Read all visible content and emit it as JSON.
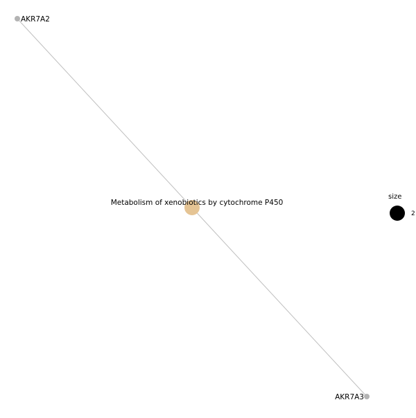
{
  "network": {
    "nodes": [
      {
        "id": "AKR7A2",
        "label": "AKR7A2",
        "type": "gene",
        "color": "#b3b3b3"
      },
      {
        "id": "pathway",
        "label": "Metabolism of xenobiotics by cytochrome P450",
        "type": "category",
        "color": "#e5c494",
        "size": 2
      },
      {
        "id": "AKR7A3",
        "label": "AKR7A3",
        "type": "gene",
        "color": "#b3b3b3"
      }
    ],
    "edges": [
      {
        "source": "pathway",
        "target": "AKR7A2"
      },
      {
        "source": "pathway",
        "target": "AKR7A3"
      }
    ],
    "edge_color": "#bfbfbf"
  },
  "legend": {
    "title": "size",
    "items": [
      {
        "value": "2",
        "color": "#000000"
      }
    ]
  }
}
